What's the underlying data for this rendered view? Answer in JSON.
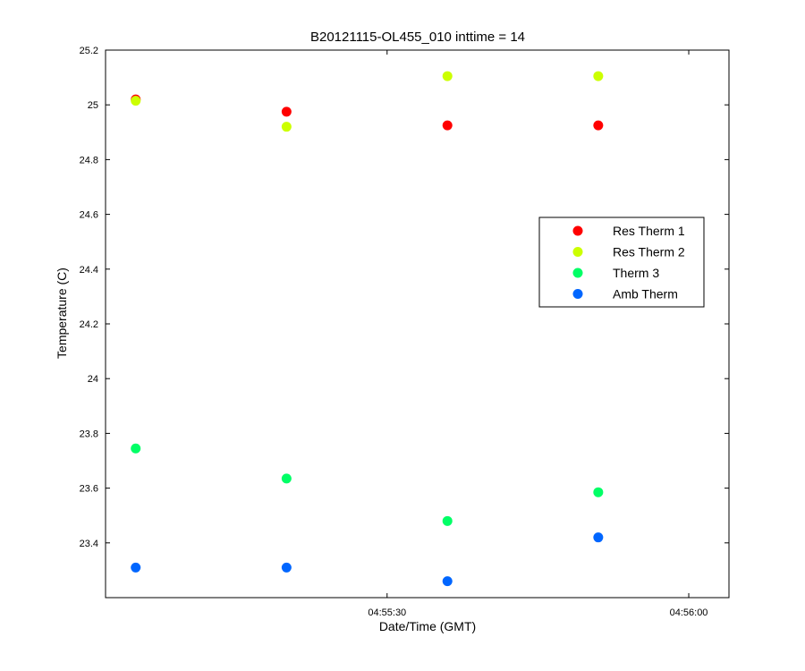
{
  "chart_data": {
    "type": "scatter",
    "title": "B20121115-OL455_010 inttime = 14",
    "xlabel": "Date/Time (GMT)",
    "ylabel": "Temperature (C)",
    "xlim": [
      "04:55:02",
      "04:56:04"
    ],
    "ylim": [
      23.2,
      25.2
    ],
    "x_ticks": [
      "04:55:30",
      "04:56:00"
    ],
    "y_ticks": [
      23.4,
      23.6,
      23.8,
      24,
      24.2,
      24.4,
      24.6,
      24.8,
      25,
      25.2
    ],
    "grid": false,
    "legend": "right",
    "x": [
      "04:55:05",
      "04:55:20",
      "04:55:36",
      "04:55:51"
    ],
    "series": [
      {
        "name": "Res Therm 1",
        "color": "#ff0000",
        "values": [
          25.02,
          24.975,
          24.925,
          24.925
        ]
      },
      {
        "name": "Res Therm 2",
        "color": "#ccff00",
        "values": [
          25.015,
          24.92,
          25.105,
          25.105
        ]
      },
      {
        "name": "Therm 3",
        "color": "#00ff66",
        "values": [
          23.745,
          23.635,
          23.48,
          23.585
        ]
      },
      {
        "name": "Amb Therm",
        "color": "#0066ff",
        "values": [
          23.31,
          23.31,
          23.26,
          23.42
        ]
      }
    ]
  }
}
